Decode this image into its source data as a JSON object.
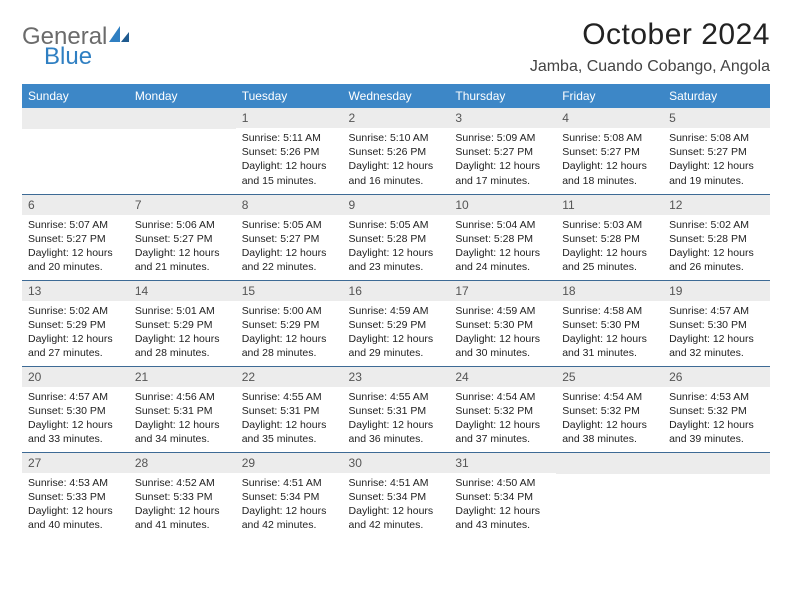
{
  "logo": {
    "text1": "General",
    "text2": "Blue"
  },
  "title": "October 2024",
  "location": "Jamba, Cuando Cobango, Angola",
  "colors": {
    "header_bg": "#3d87c7",
    "header_text": "#ffffff",
    "daynum_bg": "#ececec",
    "row_border": "#3d6a95",
    "logo_gray": "#6b6b6b",
    "logo_blue": "#2f7fc2"
  },
  "day_headers": [
    "Sunday",
    "Monday",
    "Tuesday",
    "Wednesday",
    "Thursday",
    "Friday",
    "Saturday"
  ],
  "weeks": [
    [
      null,
      null,
      {
        "n": "1",
        "rise": "5:11 AM",
        "set": "5:26 PM",
        "dl": "12 hours and 15 minutes."
      },
      {
        "n": "2",
        "rise": "5:10 AM",
        "set": "5:26 PM",
        "dl": "12 hours and 16 minutes."
      },
      {
        "n": "3",
        "rise": "5:09 AM",
        "set": "5:27 PM",
        "dl": "12 hours and 17 minutes."
      },
      {
        "n": "4",
        "rise": "5:08 AM",
        "set": "5:27 PM",
        "dl": "12 hours and 18 minutes."
      },
      {
        "n": "5",
        "rise": "5:08 AM",
        "set": "5:27 PM",
        "dl": "12 hours and 19 minutes."
      }
    ],
    [
      {
        "n": "6",
        "rise": "5:07 AM",
        "set": "5:27 PM",
        "dl": "12 hours and 20 minutes."
      },
      {
        "n": "7",
        "rise": "5:06 AM",
        "set": "5:27 PM",
        "dl": "12 hours and 21 minutes."
      },
      {
        "n": "8",
        "rise": "5:05 AM",
        "set": "5:27 PM",
        "dl": "12 hours and 22 minutes."
      },
      {
        "n": "9",
        "rise": "5:05 AM",
        "set": "5:28 PM",
        "dl": "12 hours and 23 minutes."
      },
      {
        "n": "10",
        "rise": "5:04 AM",
        "set": "5:28 PM",
        "dl": "12 hours and 24 minutes."
      },
      {
        "n": "11",
        "rise": "5:03 AM",
        "set": "5:28 PM",
        "dl": "12 hours and 25 minutes."
      },
      {
        "n": "12",
        "rise": "5:02 AM",
        "set": "5:28 PM",
        "dl": "12 hours and 26 minutes."
      }
    ],
    [
      {
        "n": "13",
        "rise": "5:02 AM",
        "set": "5:29 PM",
        "dl": "12 hours and 27 minutes."
      },
      {
        "n": "14",
        "rise": "5:01 AM",
        "set": "5:29 PM",
        "dl": "12 hours and 28 minutes."
      },
      {
        "n": "15",
        "rise": "5:00 AM",
        "set": "5:29 PM",
        "dl": "12 hours and 28 minutes."
      },
      {
        "n": "16",
        "rise": "4:59 AM",
        "set": "5:29 PM",
        "dl": "12 hours and 29 minutes."
      },
      {
        "n": "17",
        "rise": "4:59 AM",
        "set": "5:30 PM",
        "dl": "12 hours and 30 minutes."
      },
      {
        "n": "18",
        "rise": "4:58 AM",
        "set": "5:30 PM",
        "dl": "12 hours and 31 minutes."
      },
      {
        "n": "19",
        "rise": "4:57 AM",
        "set": "5:30 PM",
        "dl": "12 hours and 32 minutes."
      }
    ],
    [
      {
        "n": "20",
        "rise": "4:57 AM",
        "set": "5:30 PM",
        "dl": "12 hours and 33 minutes."
      },
      {
        "n": "21",
        "rise": "4:56 AM",
        "set": "5:31 PM",
        "dl": "12 hours and 34 minutes."
      },
      {
        "n": "22",
        "rise": "4:55 AM",
        "set": "5:31 PM",
        "dl": "12 hours and 35 minutes."
      },
      {
        "n": "23",
        "rise": "4:55 AM",
        "set": "5:31 PM",
        "dl": "12 hours and 36 minutes."
      },
      {
        "n": "24",
        "rise": "4:54 AM",
        "set": "5:32 PM",
        "dl": "12 hours and 37 minutes."
      },
      {
        "n": "25",
        "rise": "4:54 AM",
        "set": "5:32 PM",
        "dl": "12 hours and 38 minutes."
      },
      {
        "n": "26",
        "rise": "4:53 AM",
        "set": "5:32 PM",
        "dl": "12 hours and 39 minutes."
      }
    ],
    [
      {
        "n": "27",
        "rise": "4:53 AM",
        "set": "5:33 PM",
        "dl": "12 hours and 40 minutes."
      },
      {
        "n": "28",
        "rise": "4:52 AM",
        "set": "5:33 PM",
        "dl": "12 hours and 41 minutes."
      },
      {
        "n": "29",
        "rise": "4:51 AM",
        "set": "5:34 PM",
        "dl": "12 hours and 42 minutes."
      },
      {
        "n": "30",
        "rise": "4:51 AM",
        "set": "5:34 PM",
        "dl": "12 hours and 42 minutes."
      },
      {
        "n": "31",
        "rise": "4:50 AM",
        "set": "5:34 PM",
        "dl": "12 hours and 43 minutes."
      },
      null,
      null
    ]
  ],
  "labels": {
    "sunrise": "Sunrise:",
    "sunset": "Sunset:",
    "daylight": "Daylight:"
  }
}
